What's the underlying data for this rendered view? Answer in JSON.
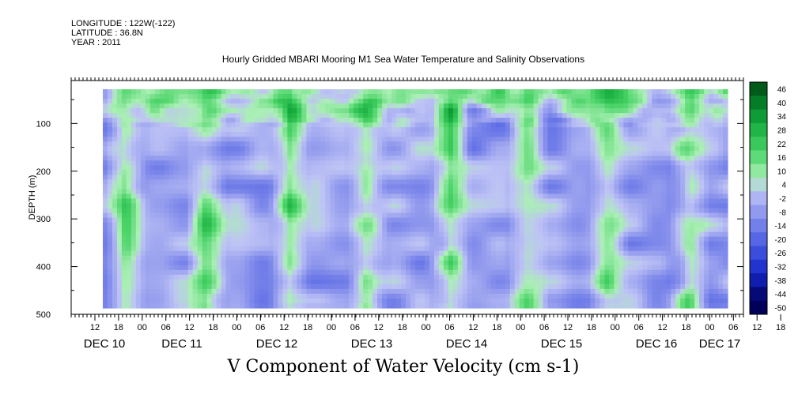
{
  "header": {
    "longitude": "LONGITUDE : 122W(-122)",
    "latitude": "LATITUDE : 36.8N",
    "year": "YEAR : 2011"
  },
  "chart_data": {
    "type": "heatmap",
    "title": "Hourly Gridded MBARI Mooring M1 Sea Water Temperature and Salinity Observations",
    "xlabel": "V Component of Water Velocity (cm s-1)",
    "ylabel": "DEPTH (m)",
    "ylim": [
      500,
      10
    ],
    "yticks": [
      100,
      200,
      300,
      400,
      500
    ],
    "xticks_hour": [
      "12",
      "18",
      "00",
      "06",
      "12",
      "18",
      "00",
      "06",
      "12",
      "18",
      "00",
      "06",
      "12",
      "18",
      "00",
      "06",
      "12",
      "18",
      "00",
      "06",
      "12",
      "18",
      "00",
      "06",
      "12",
      "18",
      "00",
      "06",
      "12",
      "18",
      "00",
      "06"
    ],
    "day_labels": [
      "DEC 10",
      "DEC 11",
      "DEC 12",
      "DEC 13",
      "DEC 14",
      "DEC 15",
      "DEC 16",
      "DEC 17"
    ],
    "colorbar": {
      "labels": [
        "46",
        "40",
        "34",
        "28",
        "22",
        "16",
        "10",
        "4",
        "-2",
        "-8",
        "-14",
        "-20",
        "-26",
        "-32",
        "-38",
        "-44",
        "-50"
      ],
      "range": [
        -50,
        46
      ]
    },
    "description_values_note": "",
    "green_columns_hours": [
      6,
      30,
      55,
      78,
      103,
      126,
      150,
      174
    ],
    "colors": {
      "positive": "#2ecc55",
      "light_positive": "#9be79f",
      "near_zero": "#c6c8f3",
      "negative": "#8f97ee",
      "strong_negative": "#5b66e3"
    }
  }
}
